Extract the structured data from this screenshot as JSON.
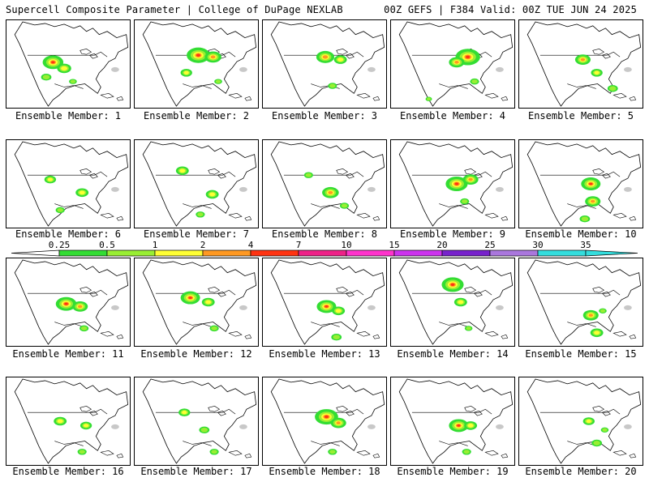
{
  "header": {
    "title": "Supercell Composite Parameter | College of DuPage NEXLAB",
    "run_info": "00Z GEFS | F384 Valid: 00Z TUE JUN 24 2025"
  },
  "members": [
    {
      "label": "Ensemble Member: 1",
      "blobs": [
        [
          -0.38,
          0.48,
          1.6
        ],
        [
          -0.1,
          0.55,
          1.1
        ],
        [
          -0.55,
          0.65,
          0.8
        ],
        [
          0.12,
          0.7,
          0.6
        ]
      ]
    },
    {
      "label": "Ensemble Member: 2",
      "blobs": [
        [
          0.05,
          0.4,
          1.8
        ],
        [
          0.42,
          0.42,
          1.3
        ],
        [
          -0.25,
          0.6,
          0.9
        ],
        [
          0.55,
          0.7,
          0.6
        ]
      ]
    },
    {
      "label": "Ensemble Member: 3",
      "blobs": [
        [
          0.02,
          0.42,
          1.4
        ],
        [
          0.4,
          0.45,
          1.0
        ],
        [
          0.2,
          0.75,
          0.7
        ]
      ]
    },
    {
      "label": "Ensemble Member: 4",
      "blobs": [
        [
          0.38,
          0.42,
          1.9
        ],
        [
          0.1,
          0.48,
          1.2
        ],
        [
          0.55,
          0.7,
          0.7
        ],
        [
          -0.6,
          0.9,
          0.5
        ]
      ]
    },
    {
      "label": "Ensemble Member: 5",
      "blobs": [
        [
          0.05,
          0.45,
          1.2
        ],
        [
          0.4,
          0.6,
          0.9
        ],
        [
          0.8,
          0.78,
          0.8
        ]
      ]
    },
    {
      "label": "Ensemble Member: 6",
      "blobs": [
        [
          -0.45,
          0.45,
          0.9
        ],
        [
          0.35,
          0.6,
          1.0
        ],
        [
          -0.2,
          0.8,
          0.7
        ]
      ]
    },
    {
      "label": "Ensemble Member: 7",
      "blobs": [
        [
          -0.35,
          0.35,
          1.0
        ],
        [
          0.4,
          0.62,
          1.0
        ],
        [
          0.1,
          0.85,
          0.7
        ]
      ]
    },
    {
      "label": "Ensemble Member: 8",
      "blobs": [
        [
          0.15,
          0.6,
          1.3
        ],
        [
          -0.4,
          0.4,
          0.7
        ],
        [
          0.5,
          0.75,
          0.7
        ]
      ]
    },
    {
      "label": "Ensemble Member: 9",
      "blobs": [
        [
          0.1,
          0.5,
          1.7
        ],
        [
          0.45,
          0.45,
          1.2
        ],
        [
          0.3,
          0.7,
          0.7
        ]
      ]
    },
    {
      "label": "Ensemble Member: 10",
      "blobs": [
        [
          0.25,
          0.5,
          1.5
        ],
        [
          0.3,
          0.7,
          1.2
        ],
        [
          0.1,
          0.9,
          0.8
        ]
      ]
    },
    {
      "label": "Ensemble Member: 11",
      "blobs": [
        [
          -0.05,
          0.52,
          1.6
        ],
        [
          0.3,
          0.55,
          1.2
        ],
        [
          0.4,
          0.8,
          0.7
        ]
      ]
    },
    {
      "label": "Ensemble Member: 12",
      "blobs": [
        [
          -0.15,
          0.45,
          1.5
        ],
        [
          0.3,
          0.5,
          1.0
        ],
        [
          0.45,
          0.8,
          0.7
        ]
      ]
    },
    {
      "label": "Ensemble Member: 13",
      "blobs": [
        [
          0.05,
          0.55,
          1.5
        ],
        [
          0.35,
          0.6,
          1.0
        ],
        [
          0.3,
          0.9,
          0.8
        ]
      ]
    },
    {
      "label": "Ensemble Member: 14",
      "blobs": [
        [
          0.0,
          0.3,
          1.7
        ],
        [
          0.2,
          0.5,
          1.0
        ],
        [
          0.4,
          0.8,
          0.6
        ]
      ]
    },
    {
      "label": "Ensemble Member: 15",
      "blobs": [
        [
          0.25,
          0.65,
          1.2
        ],
        [
          0.4,
          0.85,
          1.0
        ],
        [
          0.55,
          0.6,
          0.6
        ]
      ]
    },
    {
      "label": "Ensemble Member: 16",
      "blobs": [
        [
          -0.2,
          0.5,
          1.0
        ],
        [
          0.45,
          0.55,
          0.9
        ],
        [
          0.35,
          0.85,
          0.7
        ]
      ]
    },
    {
      "label": "Ensemble Member: 17",
      "blobs": [
        [
          -0.3,
          0.4,
          0.9
        ],
        [
          0.2,
          0.6,
          0.8
        ],
        [
          0.45,
          0.85,
          0.7
        ]
      ]
    },
    {
      "label": "Ensemble Member: 18",
      "blobs": [
        [
          0.05,
          0.45,
          1.8
        ],
        [
          0.35,
          0.52,
          1.2
        ],
        [
          0.2,
          0.85,
          0.7
        ]
      ]
    },
    {
      "label": "Ensemble Member: 19",
      "blobs": [
        [
          0.15,
          0.55,
          1.5
        ],
        [
          0.45,
          0.55,
          1.0
        ],
        [
          0.35,
          0.85,
          0.7
        ]
      ]
    },
    {
      "label": "Ensemble Member: 20",
      "blobs": [
        [
          0.2,
          0.5,
          0.9
        ],
        [
          0.4,
          0.75,
          0.8
        ],
        [
          0.6,
          0.6,
          0.6
        ]
      ]
    }
  ],
  "colorbar": {
    "levels": [
      "0.25",
      "0.5",
      "1",
      "2",
      "4",
      "7",
      "10",
      "15",
      "20",
      "25",
      "30",
      "35"
    ],
    "colors": [
      "#ffffff",
      "#33dd33",
      "#99ee33",
      "#ffff33",
      "#ff9922",
      "#ff3311",
      "#ee2288",
      "#ff33cc",
      "#cc33ee",
      "#7722cc",
      "#aa77dd",
      "#33dddd"
    ]
  }
}
